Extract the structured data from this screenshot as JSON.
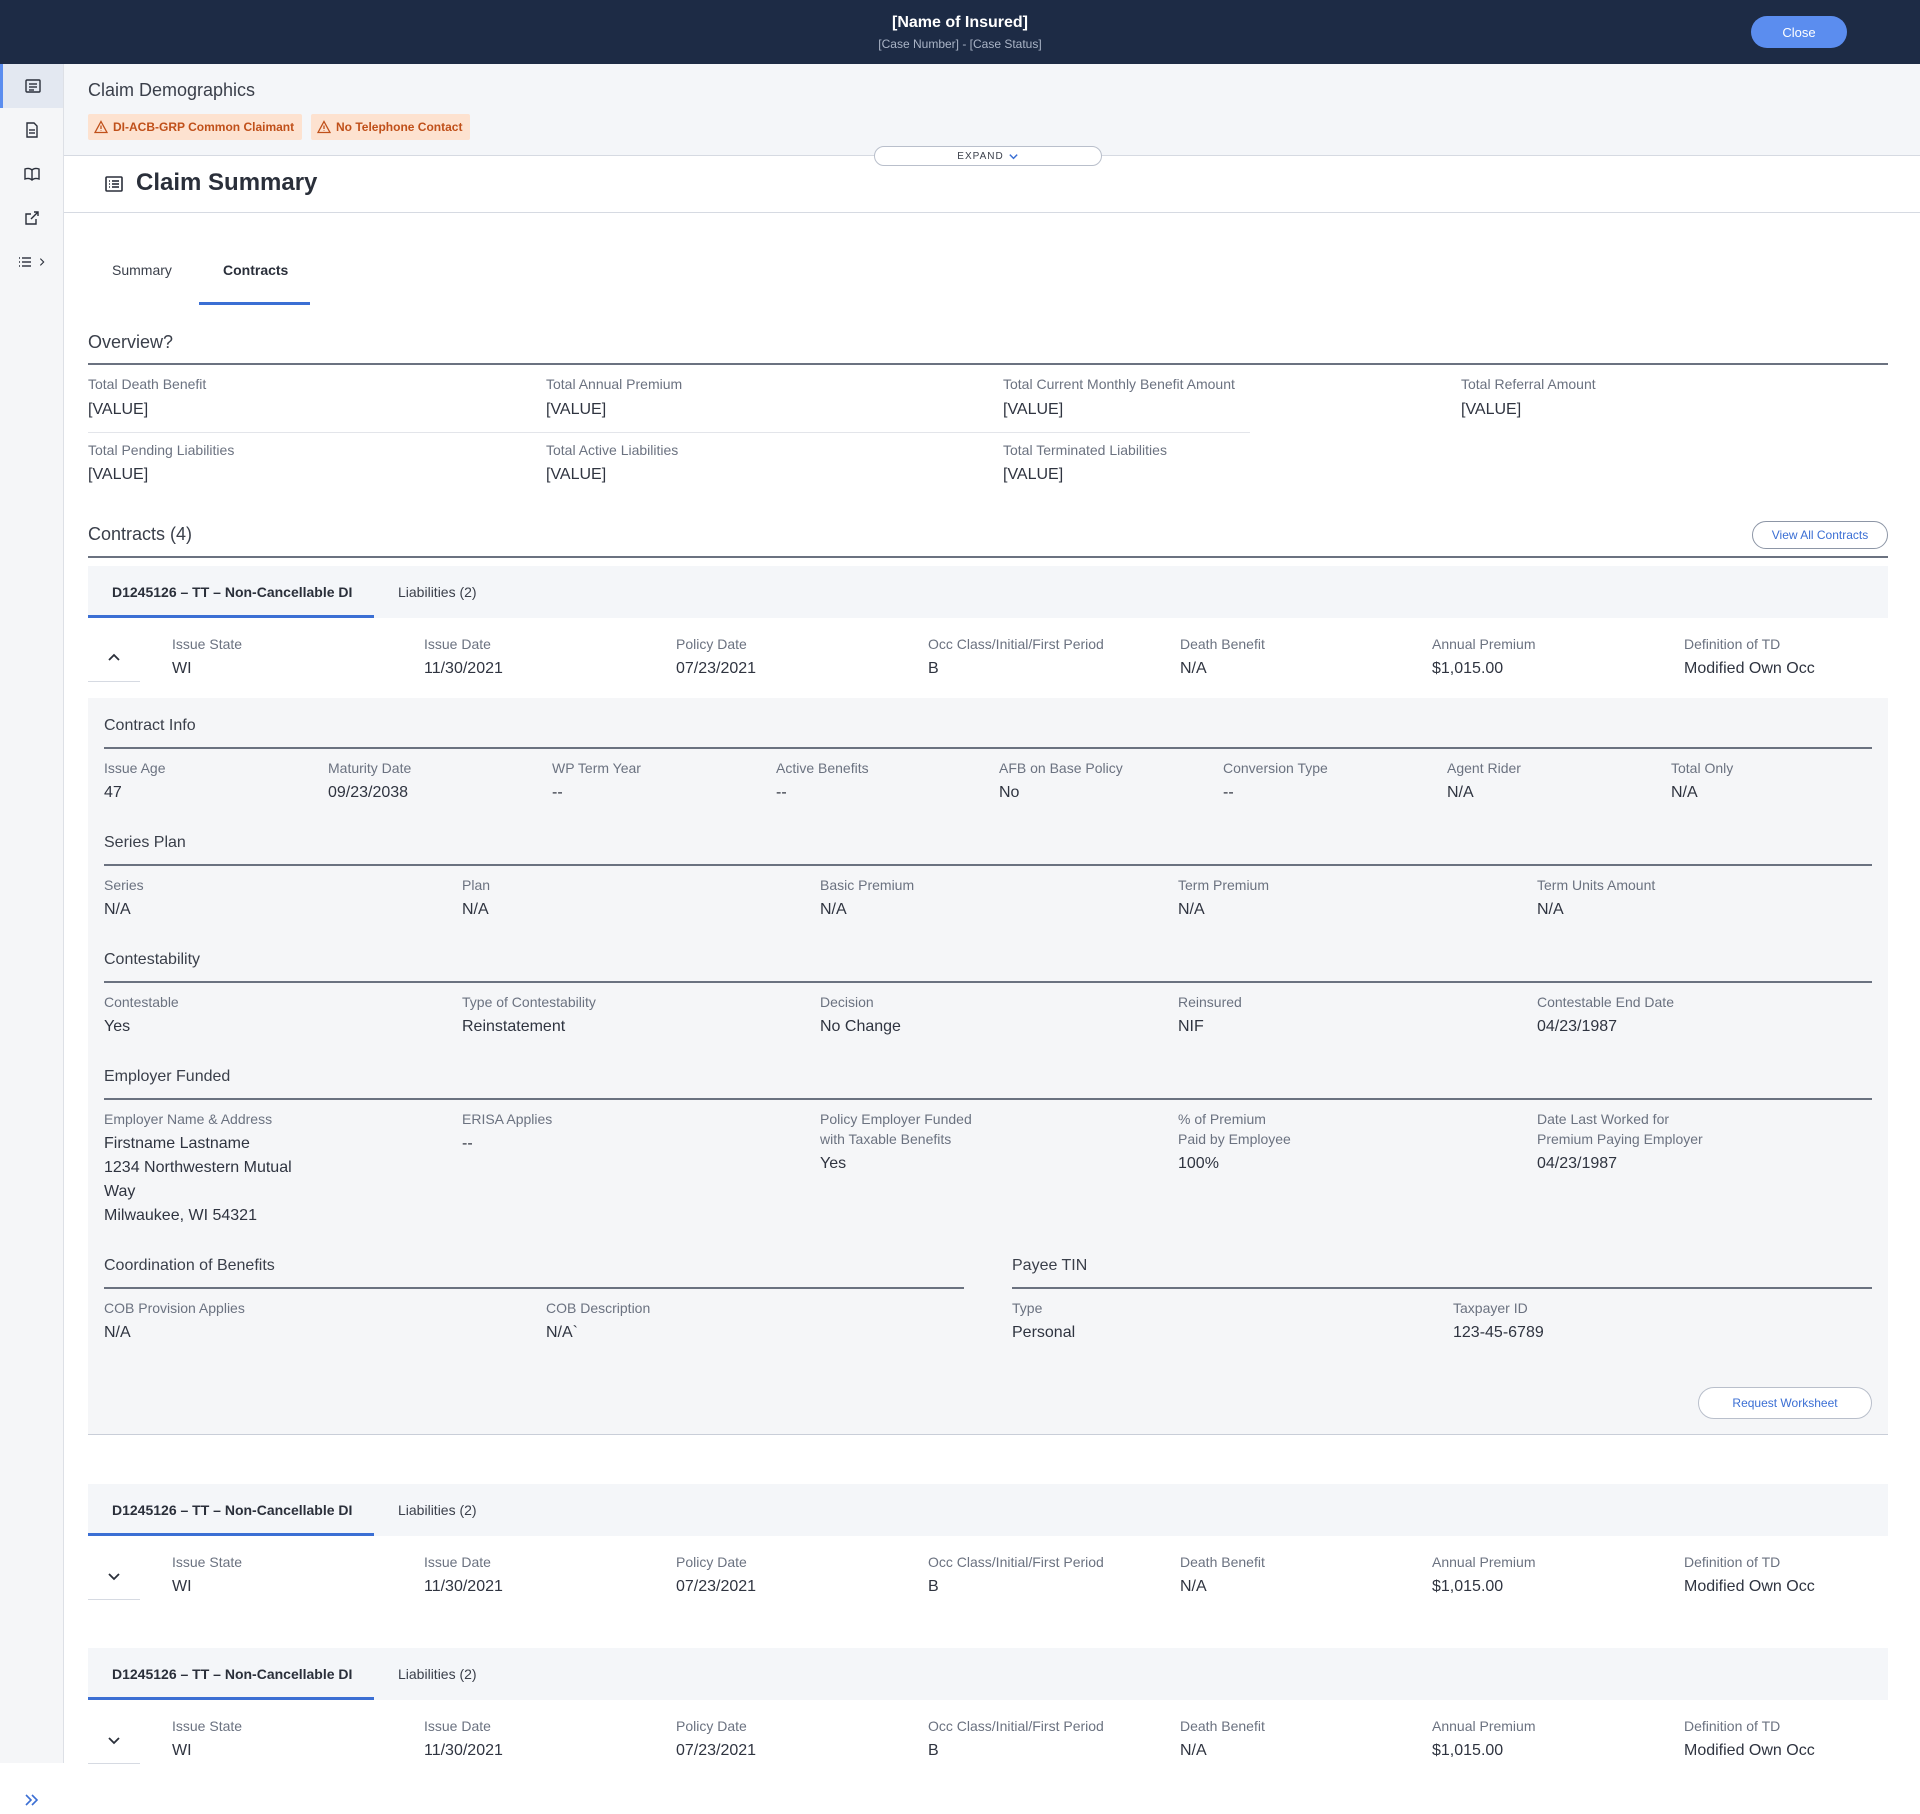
{
  "header": {
    "insured_name": "[Name of Insured]",
    "case_info": "[Case Number] - [Case Status]",
    "close_label": "Close"
  },
  "demographics": {
    "title": "Claim Demographics",
    "badges": [
      "DI-ACB-GRP Common Claimant",
      "No Telephone Contact"
    ],
    "expand_label": "EXPAND"
  },
  "claim_summary": {
    "title": "Claim Summary",
    "tabs": [
      "Summary",
      "Contracts"
    ],
    "active_tab": "Contracts"
  },
  "overview": {
    "title": "Overview?",
    "items": [
      {
        "label": "Total Death Benefit",
        "value": "[VALUE]"
      },
      {
        "label": "Total Annual Premium",
        "value": "[VALUE]"
      },
      {
        "label": "Total Current Monthly Benefit Amount",
        "value": "[VALUE]"
      },
      {
        "label": "Total Referral Amount",
        "value": "[VALUE]"
      },
      {
        "label": "Total Pending Liabilities",
        "value": "[VALUE]"
      },
      {
        "label": "Total Active Liabilities",
        "value": "[VALUE]"
      },
      {
        "label": "Total Terminated Liabilities",
        "value": "[VALUE]"
      }
    ]
  },
  "contracts": {
    "title": "Contracts (4)",
    "view_all_label": "View All Contracts",
    "cards": [
      {
        "tab_contract": "D1245126 – TT – Non-Cancellable DI",
        "tab_liabilities": "Liabilities (2)",
        "expanded": true,
        "fields": [
          {
            "label": "Issue State",
            "value": "WI"
          },
          {
            "label": "Issue Date",
            "value": "11/30/2021"
          },
          {
            "label": "Policy Date",
            "value": "07/23/2021"
          },
          {
            "label": "Occ Class/Initial/First Period",
            "value": "B"
          },
          {
            "label": "Death Benefit",
            "value": "N/A"
          },
          {
            "label": "Annual Premium",
            "value": "$1,015.00"
          },
          {
            "label": "Definition of TD",
            "value": "Modified Own Occ"
          }
        ]
      },
      {
        "tab_contract": "D1245126 – TT – Non-Cancellable DI",
        "tab_liabilities": "Liabilities (2)",
        "expanded": false,
        "fields": [
          {
            "label": "Issue State",
            "value": "WI"
          },
          {
            "label": "Issue Date",
            "value": "11/30/2021"
          },
          {
            "label": "Policy Date",
            "value": "07/23/2021"
          },
          {
            "label": "Occ Class/Initial/First Period",
            "value": "B"
          },
          {
            "label": "Death Benefit",
            "value": "N/A"
          },
          {
            "label": "Annual Premium",
            "value": "$1,015.00"
          },
          {
            "label": "Definition of TD",
            "value": "Modified Own Occ"
          }
        ]
      },
      {
        "tab_contract": "D1245126 – TT – Non-Cancellable DI",
        "tab_liabilities": "Liabilities (2)",
        "expanded": false,
        "fields": [
          {
            "label": "Issue State",
            "value": "WI"
          },
          {
            "label": "Issue Date",
            "value": "11/30/2021"
          },
          {
            "label": "Policy Date",
            "value": "07/23/2021"
          },
          {
            "label": "Occ Class/Initial/First Period",
            "value": "B"
          },
          {
            "label": "Death Benefit",
            "value": "N/A"
          },
          {
            "label": "Annual Premium",
            "value": "$1,015.00"
          },
          {
            "label": "Definition of TD",
            "value": "Modified Own Occ"
          }
        ]
      }
    ]
  },
  "contract_detail": {
    "contract_info": {
      "title": "Contract Info",
      "fields": [
        {
          "label": "Issue Age",
          "value": "47"
        },
        {
          "label": "Maturity Date",
          "value": "09/23/2038"
        },
        {
          "label": "WP Term Year",
          "value": "--"
        },
        {
          "label": "Active Benefits",
          "value": "--"
        },
        {
          "label": "AFB on Base Policy",
          "value": "No"
        },
        {
          "label": "Conversion Type",
          "value": "--"
        },
        {
          "label": "Agent Rider",
          "value": "N/A"
        },
        {
          "label": "Total Only",
          "value": "N/A"
        }
      ]
    },
    "series_plan": {
      "title": "Series Plan",
      "fields": [
        {
          "label": "Series",
          "value": "N/A"
        },
        {
          "label": "Plan",
          "value": "N/A"
        },
        {
          "label": "Basic Premium",
          "value": "N/A"
        },
        {
          "label": "Term Premium",
          "value": "N/A"
        },
        {
          "label": "Term Units Amount",
          "value": "N/A"
        }
      ]
    },
    "contestability": {
      "title": "Contestability",
      "fields": [
        {
          "label": "Contestable",
          "value": "Yes"
        },
        {
          "label": "Type of Contestability",
          "value": "Reinstatement"
        },
        {
          "label": "Decision",
          "value": "No Change"
        },
        {
          "label": "Reinsured",
          "value": "NIF"
        },
        {
          "label": "Contestable End Date",
          "value": "04/23/1987"
        }
      ]
    },
    "employer_funded": {
      "title": "Employer Funded",
      "fields": [
        {
          "label": "Employer Name & Address",
          "value": [
            "Firstname Lastname",
            "1234 Northwestern Mutual",
            "Way",
            "Milwaukee, WI 54321"
          ]
        },
        {
          "label": "ERISA Applies",
          "value": [
            "--"
          ]
        },
        {
          "label": [
            "Policy Employer Funded",
            "with Taxable Benefits"
          ],
          "value": [
            "Yes"
          ]
        },
        {
          "label": [
            "% of Premium",
            "Paid by Employee"
          ],
          "value": [
            "100%"
          ]
        },
        {
          "label": [
            "Date Last Worked for",
            "Premium Paying Employer"
          ],
          "value": [
            "04/23/1987"
          ]
        }
      ]
    },
    "coordination": {
      "title": "Coordination of Benefits",
      "fields": [
        {
          "label": "COB Provision Applies",
          "value": "N/A"
        },
        {
          "label": "COB Description",
          "value": "N/A`"
        }
      ]
    },
    "payee_tin": {
      "title": "Payee TIN",
      "fields": [
        {
          "label": "Type",
          "value": "Personal"
        },
        {
          "label": "Taxpayer ID",
          "value": "123-45-6789"
        }
      ]
    },
    "request_worksheet_label": "Request Worksheet"
  },
  "colors": {
    "topbar": "#1d2b45",
    "accent": "#3b6fd4",
    "close_button": "#5b8def",
    "badge_bg": "#fde2d0",
    "badge_text": "#c0501a"
  },
  "icons": [
    "list-icon",
    "document-icon",
    "book-icon",
    "external-link-icon",
    "menu-list-icon",
    "chevron-right-icon",
    "warning-icon",
    "chevron-down-icon",
    "chevron-up-icon",
    "double-chevron-right-icon"
  ]
}
